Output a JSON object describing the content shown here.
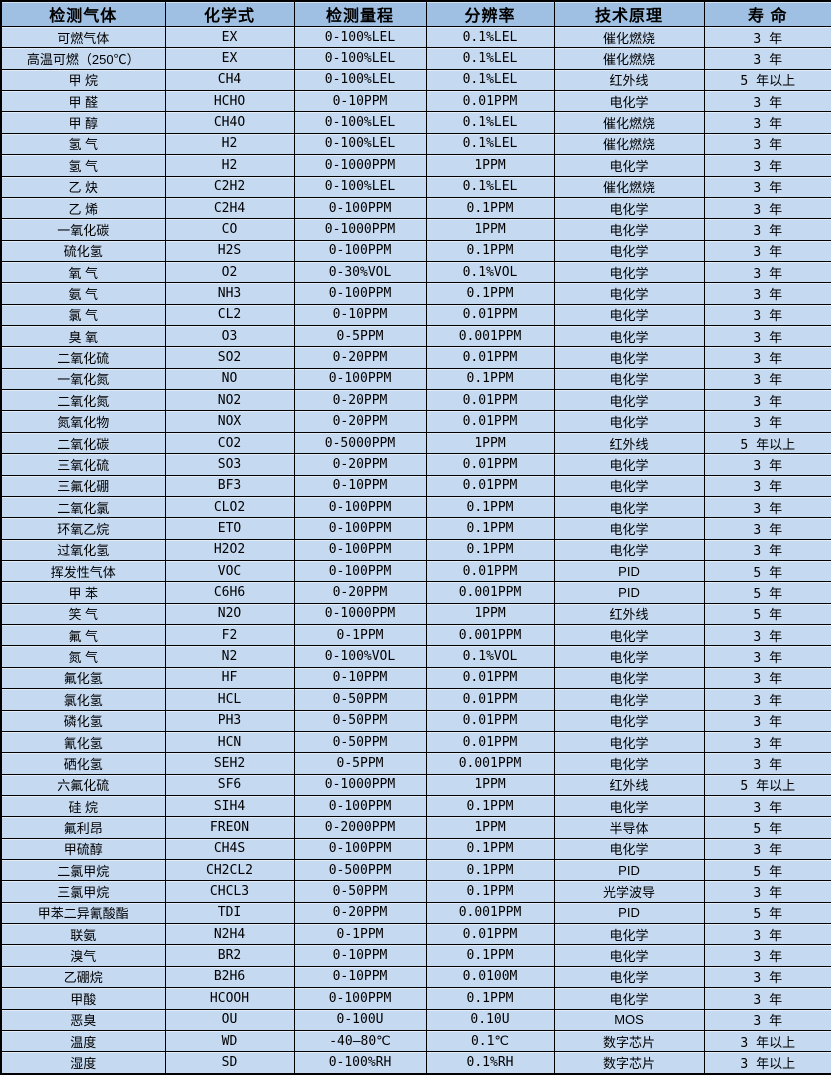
{
  "colors": {
    "header_bg": "#9fc0e2",
    "row_bg": "#c5d9f1",
    "border": "#000000",
    "text": "#000000"
  },
  "table": {
    "columns": [
      "检测气体",
      "化学式",
      "检测量程",
      "分辨率",
      "技术原理",
      "寿 命"
    ],
    "rows": [
      [
        "可燃气体",
        "EX",
        "0-100%LEL",
        "0.1%LEL",
        "催化燃烧",
        "3 年"
      ],
      [
        "高温可燃（250℃）",
        "EX",
        "0-100%LEL",
        "0.1%LEL",
        "催化燃烧",
        "3 年"
      ],
      [
        "甲 烷",
        "CH4",
        "0-100%LEL",
        "0.1%LEL",
        "红外线",
        "5 年以上"
      ],
      [
        "甲 醛",
        "HCHO",
        "0-10PPM",
        "0.01PPM",
        "电化学",
        "3 年"
      ],
      [
        "甲 醇",
        "CH4O",
        "0-100%LEL",
        "0.1%LEL",
        "催化燃烧",
        "3 年"
      ],
      [
        "氢 气",
        "H2",
        "0-100%LEL",
        "0.1%LEL",
        "催化燃烧",
        "3 年"
      ],
      [
        "氢 气",
        "H2",
        "0-1000PPM",
        "1PPM",
        "电化学",
        "3 年"
      ],
      [
        "乙 炔",
        "C2H2",
        "0-100%LEL",
        "0.1%LEL",
        "催化燃烧",
        "3 年"
      ],
      [
        "乙 烯",
        "C2H4",
        "0-100PPM",
        "0.1PPM",
        "电化学",
        "3 年"
      ],
      [
        "一氧化碳",
        "CO",
        "0-1000PPM",
        "1PPM",
        "电化学",
        "3 年"
      ],
      [
        "硫化氢",
        "H2S",
        "0-100PPM",
        "0.1PPM",
        "电化学",
        "3 年"
      ],
      [
        "氧 气",
        "O2",
        "0-30%VOL",
        "0.1%VOL",
        "电化学",
        "3 年"
      ],
      [
        "氨 气",
        "NH3",
        "0-100PPM",
        "0.1PPM",
        "电化学",
        "3 年"
      ],
      [
        "氯 气",
        "CL2",
        "0-10PPM",
        "0.01PPM",
        "电化学",
        "3 年"
      ],
      [
        "臭 氧",
        "O3",
        "0-5PPM",
        "0.001PPM",
        "电化学",
        "3 年"
      ],
      [
        "二氧化硫",
        "SO2",
        "0-20PPM",
        "0.01PPM",
        "电化学",
        "3 年"
      ],
      [
        "一氧化氮",
        "NO",
        "0-100PPM",
        "0.1PPM",
        "电化学",
        "3 年"
      ],
      [
        "二氧化氮",
        "NO2",
        "0-20PPM",
        "0.01PPM",
        "电化学",
        "3 年"
      ],
      [
        "氮氧化物",
        "NOX",
        "0-20PPM",
        "0.01PPM",
        "电化学",
        "3 年"
      ],
      [
        "二氧化碳",
        "CO2",
        "0-5000PPM",
        "1PPM",
        "红外线",
        "5 年以上"
      ],
      [
        "三氧化硫",
        "SO3",
        "0-20PPM",
        "0.01PPM",
        "电化学",
        "3 年"
      ],
      [
        "三氟化硼",
        "BF3",
        "0-10PPM",
        "0.01PPM",
        "电化学",
        "3 年"
      ],
      [
        "二氧化氯",
        "CLO2",
        "0-100PPM",
        "0.1PPM",
        "电化学",
        "3 年"
      ],
      [
        "环氧乙烷",
        "ETO",
        "0-100PPM",
        "0.1PPM",
        "电化学",
        "3 年"
      ],
      [
        "过氧化氢",
        "H2O2",
        "0-100PPM",
        "0.1PPM",
        "电化学",
        "3 年"
      ],
      [
        "挥发性气体",
        "VOC",
        "0-100PPM",
        "0.01PPM",
        "PID",
        "5 年"
      ],
      [
        "甲 苯",
        "C6H6",
        "0-20PPM",
        "0.001PPM",
        "PID",
        "5 年"
      ],
      [
        "笑 气",
        "N2O",
        "0-1000PPM",
        "1PPM",
        "红外线",
        "5 年"
      ],
      [
        "氟 气",
        "F2",
        "0-1PPM",
        "0.001PPM",
        "电化学",
        "3 年"
      ],
      [
        "氮 气",
        "N2",
        "0-100%VOL",
        "0.1%VOL",
        "电化学",
        "3 年"
      ],
      [
        "氟化氢",
        "HF",
        "0-10PPM",
        "0.01PPM",
        "电化学",
        "3 年"
      ],
      [
        "氯化氢",
        "HCL",
        "0-50PPM",
        "0.01PPM",
        "电化学",
        "3 年"
      ],
      [
        "磷化氢",
        "PH3",
        "0-50PPM",
        "0.01PPM",
        "电化学",
        "3 年"
      ],
      [
        "氰化氢",
        "HCN",
        "0-50PPM",
        "0.01PPM",
        "电化学",
        "3 年"
      ],
      [
        "硒化氢",
        "SEH2",
        "0-5PPM",
        "0.001PPM",
        "电化学",
        "3 年"
      ],
      [
        "六氟化硫",
        "SF6",
        "0-1000PPM",
        "1PPM",
        "红外线",
        "5 年以上"
      ],
      [
        "硅 烷",
        "SIH4",
        "0-100PPM",
        "0.1PPM",
        "电化学",
        "3 年"
      ],
      [
        "氟利昂",
        "FREON",
        "0-2000PPM",
        "1PPM",
        "半导体",
        "5 年"
      ],
      [
        "甲硫醇",
        "CH4S",
        "0-100PPM",
        "0.1PPM",
        "电化学",
        "3 年"
      ],
      [
        "二氯甲烷",
        "CH2CL2",
        "0-500PPM",
        "0.1PPM",
        "PID",
        "5 年"
      ],
      [
        "三氯甲烷",
        "CHCL3",
        "0-50PPM",
        "0.1PPM",
        "光学波导",
        "3 年"
      ],
      [
        "甲苯二异氰酸酯",
        "TDI",
        "0-20PPM",
        "0.001PPM",
        "PID",
        "5 年"
      ],
      [
        "联氨",
        "N2H4",
        "0-1PPM",
        "0.01PPM",
        "电化学",
        "3 年"
      ],
      [
        "溴气",
        "BR2",
        "0-10PPM",
        "0.1PPM",
        "电化学",
        "3 年"
      ],
      [
        "乙硼烷",
        "B2H6",
        "0-10PPM",
        "0.0100M",
        "电化学",
        "3 年"
      ],
      [
        "甲酸",
        "HCOOH",
        "0-100PPM",
        "0.1PPM",
        "电化学",
        "3 年"
      ],
      [
        "恶臭",
        "OU",
        "0-100U",
        "0.10U",
        "MOS",
        "3 年"
      ],
      [
        "温度",
        "WD",
        "-40—80℃",
        "0.1℃",
        "数字芯片",
        "3 年以上"
      ],
      [
        "湿度",
        "SD",
        "0-100%RH",
        "0.1%RH",
        "数字芯片",
        "3 年以上"
      ]
    ]
  }
}
